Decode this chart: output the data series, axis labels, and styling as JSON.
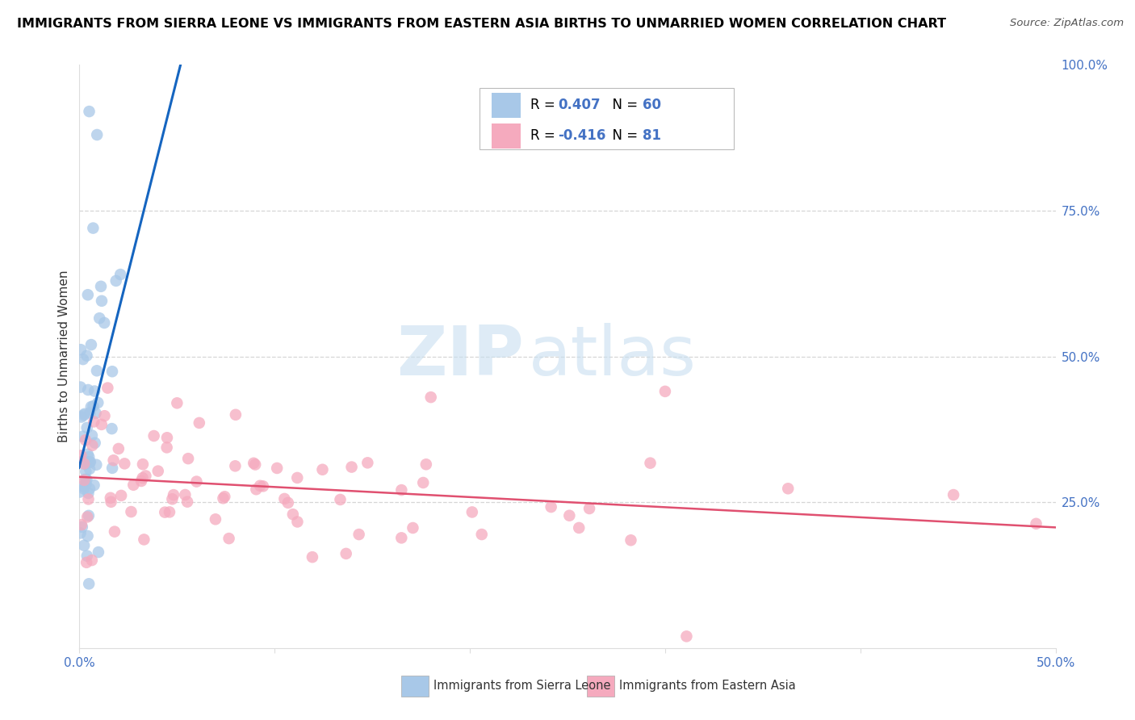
{
  "title": "IMMIGRANTS FROM SIERRA LEONE VS IMMIGRANTS FROM EASTERN ASIA BIRTHS TO UNMARRIED WOMEN CORRELATION CHART",
  "source": "Source: ZipAtlas.com",
  "ylabel": "Births to Unmarried Women",
  "x_min": 0.0,
  "x_max": 0.5,
  "y_min": 0.0,
  "y_max": 1.0,
  "blue_R": 0.407,
  "blue_N": 60,
  "pink_R": -0.416,
  "pink_N": 81,
  "blue_color": "#a8c8e8",
  "pink_color": "#f5aabe",
  "blue_line_color": "#1565c0",
  "pink_line_color": "#e05070",
  "legend_label_blue": "Immigrants from Sierra Leone",
  "legend_label_pink": "Immigrants from Eastern Asia",
  "watermark_ZIP": "ZIP",
  "watermark_atlas": "atlas",
  "background_color": "#ffffff",
  "grid_color": "#cccccc",
  "title_color": "#000000",
  "axis_tick_color": "#4472c4",
  "axis_label_color": "#333333",
  "seed": 7
}
